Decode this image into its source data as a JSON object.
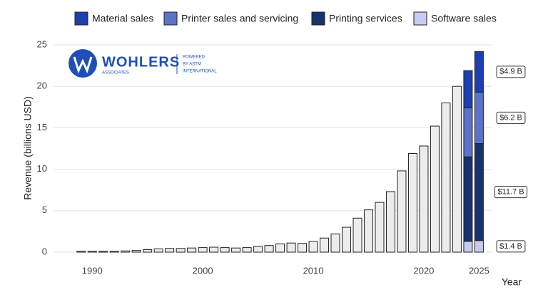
{
  "logo": {
    "name": "WOHLERS",
    "sub": "ASSOCIATES",
    "powered": [
      "POWERED",
      "BY ASTM",
      "INTERNATIONAL"
    ]
  },
  "chart_data": {
    "type": "bar",
    "x_label": "Year",
    "y_label": "Revenue (billions USD)",
    "x": [
      1989,
      1990,
      1991,
      1992,
      1993,
      1994,
      1995,
      1996,
      1997,
      1998,
      1999,
      2000,
      2001,
      2002,
      2003,
      2004,
      2005,
      2006,
      2007,
      2008,
      2009,
      2010,
      2011,
      2012,
      2013,
      2014,
      2015,
      2016,
      2017,
      2018,
      2019,
      2020,
      2021,
      2022,
      2023,
      2024,
      2025
    ],
    "values": [
      0.1,
      0.1,
      0.1,
      0.1,
      0.15,
      0.2,
      0.3,
      0.4,
      0.45,
      0.45,
      0.5,
      0.55,
      0.6,
      0.55,
      0.5,
      0.55,
      0.7,
      0.8,
      1.0,
      1.1,
      1.05,
      1.3,
      1.7,
      2.2,
      3.0,
      4.1,
      5.1,
      6.0,
      7.3,
      9.8,
      11.9,
      12.8,
      15.2,
      18.0,
      20.0,
      null,
      null
    ],
    "color": "#ececec",
    "series": [
      {
        "name": "Material sales",
        "color": "#1b3fb3",
        "values": [
          null,
          null,
          null,
          null,
          null,
          null,
          null,
          null,
          null,
          null,
          null,
          null,
          null,
          null,
          null,
          null,
          null,
          null,
          null,
          null,
          null,
          null,
          null,
          null,
          null,
          null,
          null,
          null,
          null,
          null,
          null,
          null,
          null,
          null,
          null,
          4.5,
          4.9
        ],
        "value_labels": [
          null,
          null,
          null,
          null,
          null,
          null,
          null,
          null,
          null,
          null,
          null,
          null,
          null,
          null,
          null,
          null,
          null,
          null,
          null,
          null,
          null,
          null,
          null,
          null,
          null,
          null,
          null,
          null,
          null,
          null,
          null,
          null,
          null,
          null,
          null,
          null,
          "$4.9 B"
        ]
      },
      {
        "name": "Printer sales and servicing",
        "color": "#5b73cb",
        "values": [
          null,
          null,
          null,
          null,
          null,
          null,
          null,
          null,
          null,
          null,
          null,
          null,
          null,
          null,
          null,
          null,
          null,
          null,
          null,
          null,
          null,
          null,
          null,
          null,
          null,
          null,
          null,
          null,
          null,
          null,
          null,
          null,
          null,
          null,
          null,
          5.9,
          6.2
        ],
        "value_labels": [
          null,
          null,
          null,
          null,
          null,
          null,
          null,
          null,
          null,
          null,
          null,
          null,
          null,
          null,
          null,
          null,
          null,
          null,
          null,
          null,
          null,
          null,
          null,
          null,
          null,
          null,
          null,
          null,
          null,
          null,
          null,
          null,
          null,
          null,
          null,
          null,
          "$6.2 B"
        ]
      },
      {
        "name": "Printing services",
        "color": "#17336f",
        "values": [
          null,
          null,
          null,
          null,
          null,
          null,
          null,
          null,
          null,
          null,
          null,
          null,
          null,
          null,
          null,
          null,
          null,
          null,
          null,
          null,
          null,
          null,
          null,
          null,
          null,
          null,
          null,
          null,
          null,
          null,
          null,
          null,
          null,
          null,
          null,
          10.2,
          11.7
        ],
        "value_labels": [
          null,
          null,
          null,
          null,
          null,
          null,
          null,
          null,
          null,
          null,
          null,
          null,
          null,
          null,
          null,
          null,
          null,
          null,
          null,
          null,
          null,
          null,
          null,
          null,
          null,
          null,
          null,
          null,
          null,
          null,
          null,
          null,
          null,
          null,
          null,
          null,
          "$11.7 B"
        ]
      },
      {
        "name": "Software sales",
        "color": "#c4ccef",
        "values": [
          null,
          null,
          null,
          null,
          null,
          null,
          null,
          null,
          null,
          null,
          null,
          null,
          null,
          null,
          null,
          null,
          null,
          null,
          null,
          null,
          null,
          null,
          null,
          null,
          null,
          null,
          null,
          null,
          null,
          null,
          null,
          null,
          null,
          null,
          null,
          1.3,
          1.4
        ],
        "value_labels": [
          null,
          null,
          null,
          null,
          null,
          null,
          null,
          null,
          null,
          null,
          null,
          null,
          null,
          null,
          null,
          null,
          null,
          null,
          null,
          null,
          null,
          null,
          null,
          null,
          null,
          null,
          null,
          null,
          null,
          null,
          null,
          null,
          null,
          null,
          null,
          null,
          "$1.4 B"
        ]
      }
    ],
    "xlim": [
      1986.5,
      2026.2
    ],
    "xticks": [
      1990,
      2000,
      2010,
      2020,
      2025
    ],
    "ylim": [
      0,
      25
    ],
    "yticks": [
      0,
      5,
      10,
      15,
      20,
      25
    ],
    "grid": true
  }
}
